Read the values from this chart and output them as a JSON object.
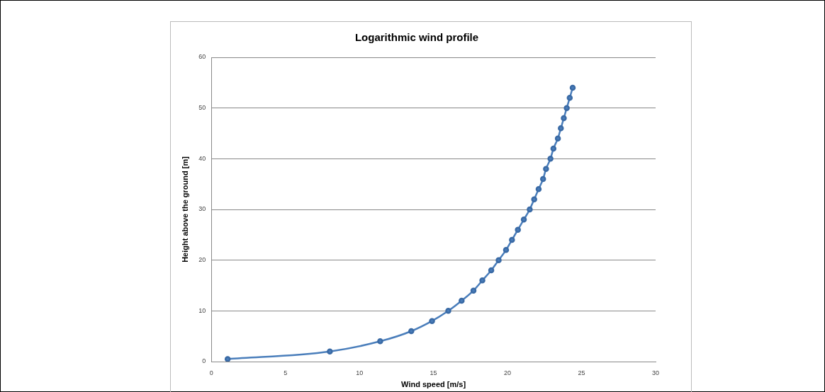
{
  "chart_data": {
    "type": "line",
    "title": "Logarithmic wind profile",
    "xlabel": "Wind speed [m/s]",
    "ylabel": "Height above the ground [m]",
    "x": [
      1.1,
      8.0,
      11.4,
      13.5,
      14.9,
      16.0,
      16.9,
      17.7,
      18.3,
      18.9,
      19.4,
      19.9,
      20.3,
      20.7,
      21.1,
      21.5,
      21.8,
      22.1,
      22.4,
      22.6,
      22.9,
      23.1,
      23.4,
      23.6,
      23.8,
      24.0,
      24.2,
      24.4
    ],
    "series": [
      {
        "color": "#4a7ebb",
        "values": [
          0.5,
          2,
          4,
          6,
          8,
          10,
          12,
          14,
          16,
          18,
          20,
          22,
          24,
          26,
          28,
          30,
          32,
          34,
          36,
          38,
          40,
          42,
          44,
          46,
          48,
          50,
          52,
          54
        ]
      }
    ],
    "xlim": [
      0,
      30
    ],
    "xticks": [
      0,
      5,
      10,
      15,
      20,
      25,
      30
    ],
    "ylim": [
      0,
      60
    ],
    "yticks": [
      0,
      10,
      20,
      30,
      40,
      50,
      60
    ],
    "grid": "y",
    "legend": false,
    "marker": "circle",
    "line_style": "solid"
  }
}
